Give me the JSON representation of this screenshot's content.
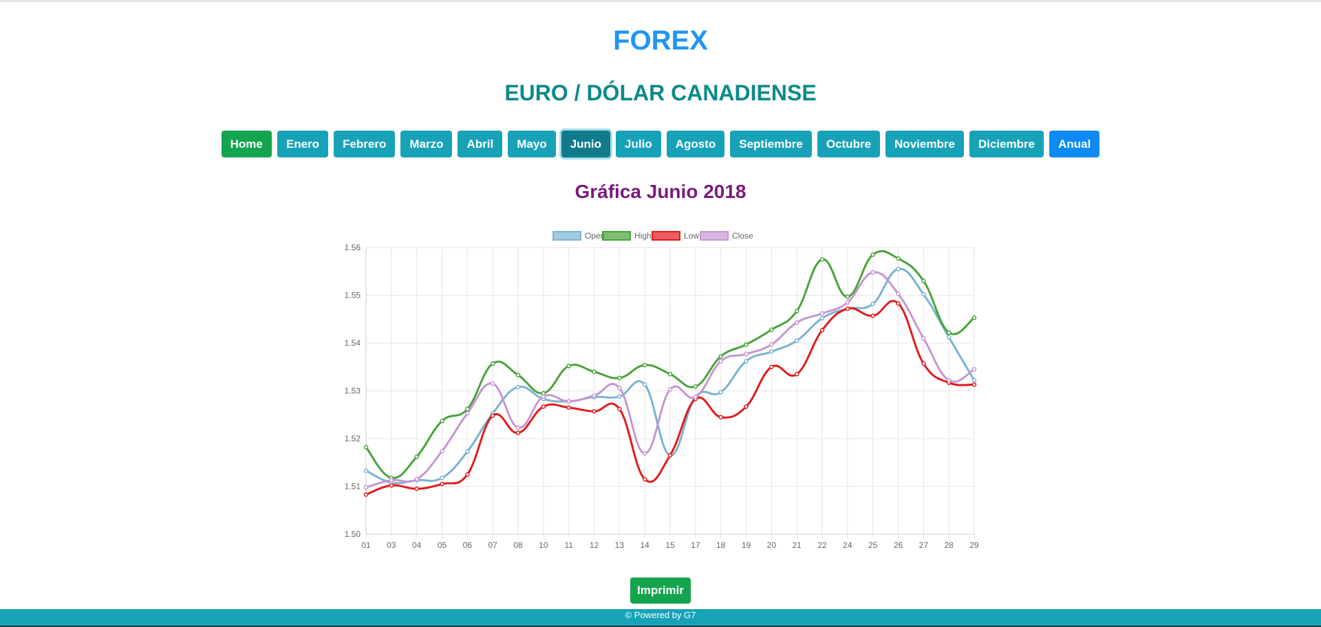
{
  "header": {
    "title": "FOREX",
    "subtitle": "EURO / DÓLAR CANADIENSE"
  },
  "nav": {
    "home": "Home",
    "months": [
      "Enero",
      "Febrero",
      "Marzo",
      "Abril",
      "Mayo",
      "Junio",
      "Julio",
      "Agosto",
      "Septiembre",
      "Octubre",
      "Noviembre",
      "Diciembre"
    ],
    "active_month": "Junio",
    "anual": "Anual"
  },
  "chart_title": "Gráfica Junio 2018",
  "chart_data": {
    "type": "line",
    "title": "",
    "xlabel": "",
    "ylabel": "",
    "ylim": [
      1.5,
      1.56
    ],
    "yticks": [
      "1.50",
      "1.51",
      "1.52",
      "1.53",
      "1.54",
      "1.55",
      "1.56"
    ],
    "grid": true,
    "legend": "top-center",
    "categories": [
      "01",
      "03",
      "04",
      "05",
      "06",
      "07",
      "08",
      "10",
      "11",
      "12",
      "13",
      "14",
      "15",
      "17",
      "18",
      "19",
      "20",
      "21",
      "22",
      "24",
      "25",
      "26",
      "27",
      "28",
      "29"
    ],
    "series": [
      {
        "name": "Open",
        "color": "#7ab3d1",
        "values": [
          1.5133,
          1.5108,
          1.5113,
          1.5118,
          1.5173,
          1.5253,
          1.5308,
          1.5283,
          1.5278,
          1.5287,
          1.5288,
          1.5313,
          1.5165,
          1.5287,
          1.5297,
          1.5362,
          1.5382,
          1.5405,
          1.5452,
          1.5472,
          1.5482,
          1.5555,
          1.5502,
          1.5412,
          1.5322
        ]
      },
      {
        "name": "High",
        "color": "#4aa33a",
        "values": [
          1.5182,
          1.5118,
          1.5162,
          1.5237,
          1.5262,
          1.5357,
          1.5333,
          1.5295,
          1.5352,
          1.534,
          1.5327,
          1.5354,
          1.5335,
          1.5309,
          1.5372,
          1.5397,
          1.5428,
          1.5467,
          1.5575,
          1.5497,
          1.5585,
          1.5577,
          1.553,
          1.5422,
          1.5453
        ]
      },
      {
        "name": "Low",
        "color": "#e31a1c",
        "values": [
          1.5083,
          1.5102,
          1.5095,
          1.5105,
          1.5125,
          1.5248,
          1.5212,
          1.5267,
          1.5265,
          1.5257,
          1.5262,
          1.5115,
          1.5165,
          1.5283,
          1.5245,
          1.5267,
          1.535,
          1.5335,
          1.5427,
          1.5472,
          1.5457,
          1.5483,
          1.5357,
          1.5317,
          1.5313
        ]
      },
      {
        "name": "Close",
        "color": "#c696d2",
        "values": [
          1.5098,
          1.5113,
          1.5115,
          1.5174,
          1.5253,
          1.5315,
          1.5223,
          1.5288,
          1.5278,
          1.529,
          1.5306,
          1.5169,
          1.5303,
          1.5287,
          1.5362,
          1.5377,
          1.5397,
          1.5443,
          1.5462,
          1.5485,
          1.5548,
          1.5503,
          1.541,
          1.5322,
          1.5345
        ]
      }
    ]
  },
  "print_button": "Imprimir",
  "footer": "© Powered by G7"
}
